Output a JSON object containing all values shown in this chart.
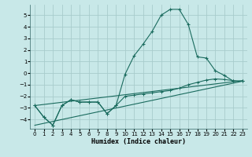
{
  "xlabel": "Humidex (Indice chaleur)",
  "background_color": "#c8e8e8",
  "grid_color": "#a8cccc",
  "line_color": "#1a6b5e",
  "xlim": [
    -0.5,
    23.5
  ],
  "ylim": [
    -4.8,
    5.9
  ],
  "yticks": [
    -4,
    -3,
    -2,
    -1,
    0,
    1,
    2,
    3,
    4,
    5
  ],
  "xticks": [
    0,
    1,
    2,
    3,
    4,
    5,
    6,
    7,
    8,
    9,
    10,
    11,
    12,
    13,
    14,
    15,
    16,
    17,
    18,
    19,
    20,
    21,
    22,
    23
  ],
  "line1_x": [
    0,
    1,
    2,
    3,
    4,
    5,
    6,
    7,
    8,
    9,
    10,
    11,
    12,
    13,
    14,
    15,
    16,
    17,
    18,
    19,
    20,
    21,
    22,
    23
  ],
  "line1_y": [
    -2.8,
    -3.8,
    -4.5,
    -2.8,
    -2.3,
    -2.5,
    -2.5,
    -2.5,
    -3.5,
    -2.8,
    -0.1,
    1.5,
    2.5,
    3.6,
    5.0,
    5.5,
    5.5,
    4.2,
    1.4,
    1.3,
    0.2,
    -0.2,
    -0.7,
    -0.7
  ],
  "line2_x": [
    0,
    1,
    2,
    3,
    4,
    5,
    6,
    7,
    8,
    9,
    10,
    11,
    12,
    13,
    14,
    15,
    16,
    17,
    18,
    19,
    20,
    21,
    22,
    23
  ],
  "line2_y": [
    -2.8,
    -3.8,
    -4.5,
    -2.8,
    -2.3,
    -2.5,
    -2.5,
    -2.5,
    -3.5,
    -2.8,
    -2.0,
    -1.9,
    -1.8,
    -1.7,
    -1.6,
    -1.5,
    -1.3,
    -1.0,
    -0.8,
    -0.6,
    -0.5,
    -0.55,
    -0.65,
    -0.7
  ],
  "line3_x": [
    0,
    23
  ],
  "line3_y": [
    -2.8,
    -0.65
  ],
  "line4_x": [
    0,
    23
  ],
  "line4_y": [
    -4.5,
    -0.7
  ]
}
